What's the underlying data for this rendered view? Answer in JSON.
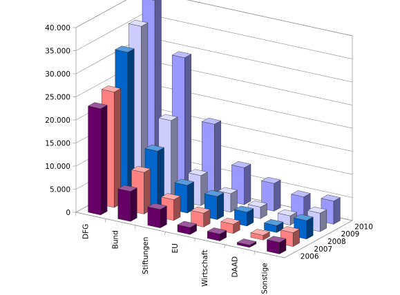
{
  "chart_data": {
    "type": "bar",
    "style": "3d-clustered-depth",
    "title": "",
    "xlabel": "",
    "ylabel": "",
    "ylim": [
      0,
      40000
    ],
    "y_ticks": [
      "0",
      "5.000",
      "10.000",
      "15.000",
      "20.000",
      "25.000",
      "30.000",
      "35.000",
      "40.000"
    ],
    "grid": true,
    "categories": [
      "DFG",
      "Bund",
      "Stiftungen",
      "EU",
      "Wirtschaft",
      "DAAD",
      "Sonstige"
    ],
    "series": [
      {
        "name": "2006",
        "color": "#660066",
        "values": [
          23000,
          6500,
          4000,
          1500,
          1500,
          500,
          2500
        ]
      },
      {
        "name": "2007",
        "color": "#ff8080",
        "values": [
          25000,
          9000,
          4500,
          3000,
          2000,
          1000,
          3000
        ]
      },
      {
        "name": "2008",
        "color": "#0066cc",
        "values": [
          32000,
          12000,
          6000,
          5000,
          3000,
          1500,
          4000
        ]
      },
      {
        "name": "2009",
        "color": "#ccccff",
        "values": [
          36000,
          17000,
          6500,
          4000,
          2500,
          2000,
          4000
        ]
      },
      {
        "name": "2010",
        "color": "#9999ff",
        "values": [
          40000,
          29000,
          16000,
          8000,
          6000,
          4500,
          5000
        ]
      }
    ]
  }
}
